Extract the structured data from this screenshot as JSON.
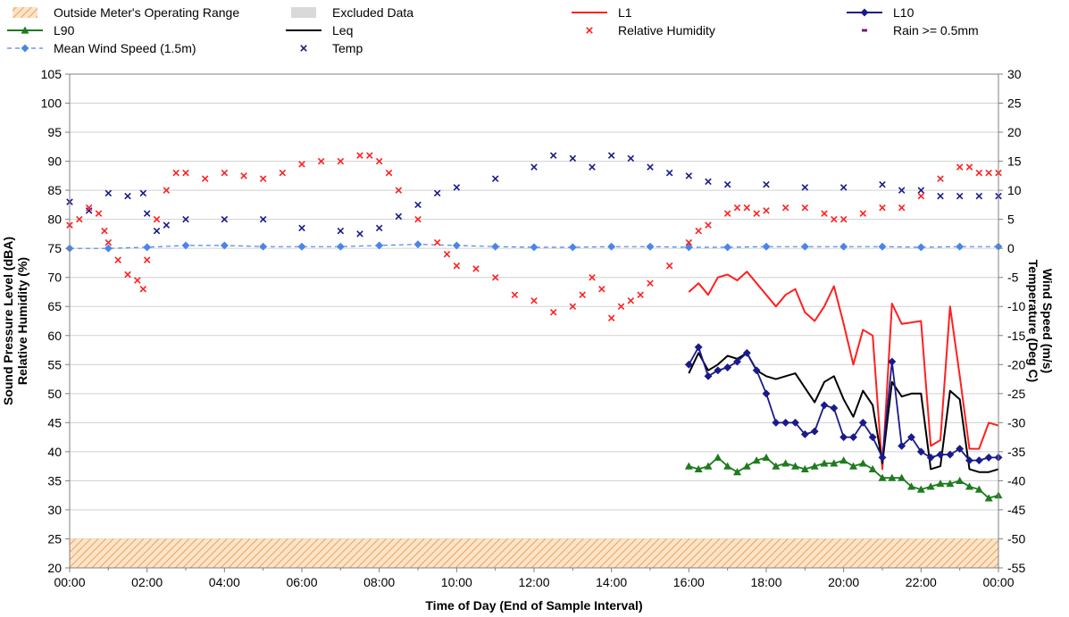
{
  "chart_data": {
    "type": "line",
    "xlabel": "Time of Day (End of Sample Interval)",
    "ylabel_left": [
      "Sound Pressure Level (dBA)",
      "Relative Humidity (%)"
    ],
    "ylabel_right": [
      "Wind Speed (m/s)",
      "Temperature (Deg C)"
    ],
    "x_ticks": [
      "00:00",
      "02:00",
      "04:00",
      "06:00",
      "08:00",
      "10:00",
      "12:00",
      "14:00",
      "16:00",
      "18:00",
      "20:00",
      "22:00",
      "00:00"
    ],
    "xlim_hours": [
      0,
      24
    ],
    "ylim_left": [
      20,
      105
    ],
    "yticks_left": [
      20,
      25,
      30,
      35,
      40,
      45,
      50,
      55,
      60,
      65,
      70,
      75,
      80,
      85,
      90,
      95,
      100,
      105
    ],
    "ylim_right": [
      -55,
      30
    ],
    "yticks_right": [
      -55,
      -50,
      -45,
      -40,
      -35,
      -30,
      -25,
      -20,
      -15,
      -10,
      -5,
      0,
      5,
      10,
      15,
      20,
      25,
      30
    ],
    "grid": "horizontal",
    "legend_placement": "top",
    "bands": [
      {
        "name": "Outside Meter's Operating Range",
        "y_from": 20,
        "y_to": 25,
        "axis": "left",
        "color": "#f2b36b"
      }
    ],
    "legend": [
      {
        "label": "Outside Meter's Operating Range",
        "kind": "hatch",
        "color": "#f2b36b"
      },
      {
        "label": "Excluded Data",
        "kind": "box",
        "color": "#d9d9d9"
      },
      {
        "label": "L1",
        "kind": "line",
        "color": "#ff2020"
      },
      {
        "label": "L10",
        "kind": "line-diamond",
        "color": "#1a1a8c"
      },
      {
        "label": "L90",
        "kind": "line-triangle",
        "color": "#1e7b1e"
      },
      {
        "label": "Leq",
        "kind": "line",
        "color": "#000000"
      },
      {
        "label": "Relative Humidity",
        "kind": "x",
        "color": "#ff2020"
      },
      {
        "label": "Rain >= 0.5mm",
        "kind": "dash",
        "color": "#7a1a7a"
      },
      {
        "label": "Mean Wind Speed (1.5m)",
        "kind": "dash-diamond",
        "color": "#4a86e8"
      },
      {
        "label": "Temp",
        "kind": "x",
        "color": "#1a1a8c"
      }
    ],
    "series": [
      {
        "name": "Relative Humidity",
        "axis": "left",
        "style": "x",
        "color": "#ff2020",
        "points": [
          [
            0,
            79
          ],
          [
            0.25,
            80
          ],
          [
            0.5,
            82
          ],
          [
            0.75,
            81
          ],
          [
            0.9,
            78
          ],
          [
            1.0,
            76
          ],
          [
            1.25,
            73
          ],
          [
            1.5,
            70.5
          ],
          [
            1.75,
            69.5
          ],
          [
            1.9,
            68
          ],
          [
            2.0,
            73
          ],
          [
            2.25,
            80
          ],
          [
            2.5,
            85
          ],
          [
            2.75,
            88
          ],
          [
            3.0,
            88
          ],
          [
            3.5,
            87
          ],
          [
            4.0,
            88
          ],
          [
            4.5,
            87.5
          ],
          [
            5.0,
            87
          ],
          [
            5.5,
            88
          ],
          [
            6.0,
            89.5
          ],
          [
            6.5,
            90
          ],
          [
            7.0,
            90
          ],
          [
            7.5,
            91
          ],
          [
            7.75,
            91
          ],
          [
            8.0,
            90
          ],
          [
            8.25,
            88
          ],
          [
            8.5,
            85
          ],
          [
            9.0,
            80
          ],
          [
            9.5,
            76
          ],
          [
            9.75,
            74
          ],
          [
            10.0,
            72
          ],
          [
            10.5,
            71.5
          ],
          [
            11.0,
            70
          ],
          [
            11.5,
            67
          ],
          [
            12.0,
            66
          ],
          [
            12.5,
            64
          ],
          [
            13.0,
            65
          ],
          [
            13.25,
            67
          ],
          [
            13.5,
            70
          ],
          [
            13.75,
            68
          ],
          [
            14.0,
            63
          ],
          [
            14.25,
            65
          ],
          [
            14.5,
            66
          ],
          [
            14.75,
            67
          ],
          [
            15.0,
            69
          ],
          [
            15.5,
            72
          ],
          [
            16.0,
            76
          ],
          [
            16.25,
            78
          ],
          [
            16.5,
            79
          ],
          [
            17.0,
            81
          ],
          [
            17.25,
            82
          ],
          [
            17.5,
            82
          ],
          [
            17.75,
            81
          ],
          [
            18.0,
            81.5
          ],
          [
            18.5,
            82
          ],
          [
            19.0,
            82
          ],
          [
            19.5,
            81
          ],
          [
            19.75,
            80
          ],
          [
            20.0,
            80
          ],
          [
            20.5,
            81
          ],
          [
            21.0,
            82
          ],
          [
            21.5,
            82
          ],
          [
            22.0,
            84
          ],
          [
            22.5,
            87
          ],
          [
            23.0,
            89
          ],
          [
            23.25,
            89
          ],
          [
            23.5,
            88
          ],
          [
            23.75,
            88
          ],
          [
            24.0,
            88
          ]
        ]
      },
      {
        "name": "Temp",
        "axis": "right",
        "style": "x",
        "color": "#1a1a8c",
        "points": [
          [
            0,
            8
          ],
          [
            0.5,
            6.5
          ],
          [
            1.0,
            9.5
          ],
          [
            1.5,
            9
          ],
          [
            1.9,
            9.5
          ],
          [
            2.0,
            6
          ],
          [
            2.25,
            3
          ],
          [
            2.5,
            4
          ],
          [
            3.0,
            5
          ],
          [
            4.0,
            5
          ],
          [
            5.0,
            5
          ],
          [
            6.0,
            3.5
          ],
          [
            7.0,
            3
          ],
          [
            7.5,
            2.5
          ],
          [
            8.0,
            3.5
          ],
          [
            8.5,
            5.5
          ],
          [
            9.0,
            7.5
          ],
          [
            9.5,
            9.5
          ],
          [
            10.0,
            10.5
          ],
          [
            11.0,
            12
          ],
          [
            12.0,
            14
          ],
          [
            12.5,
            16
          ],
          [
            13.0,
            15.5
          ],
          [
            13.5,
            14
          ],
          [
            14.0,
            16
          ],
          [
            14.5,
            15.5
          ],
          [
            15.0,
            14
          ],
          [
            15.5,
            13
          ],
          [
            16.0,
            12.5
          ],
          [
            16.5,
            11.5
          ],
          [
            17.0,
            11
          ],
          [
            18.0,
            11
          ],
          [
            19.0,
            10.5
          ],
          [
            20.0,
            10.5
          ],
          [
            21.0,
            11
          ],
          [
            21.5,
            10
          ],
          [
            22.0,
            10
          ],
          [
            22.5,
            9
          ],
          [
            23.0,
            9
          ],
          [
            23.5,
            9
          ],
          [
            24.0,
            9
          ]
        ]
      },
      {
        "name": "Mean Wind Speed (1.5m)",
        "axis": "right",
        "style": "dash-diamond",
        "color": "#4a86e8",
        "points": [
          [
            0,
            0
          ],
          [
            1,
            0
          ],
          [
            2,
            0.2
          ],
          [
            3,
            0.5
          ],
          [
            4,
            0.5
          ],
          [
            5,
            0.3
          ],
          [
            6,
            0.3
          ],
          [
            7,
            0.3
          ],
          [
            8,
            0.5
          ],
          [
            9,
            0.7
          ],
          [
            10,
            0.5
          ],
          [
            11,
            0.3
          ],
          [
            12,
            0.2
          ],
          [
            13,
            0.2
          ],
          [
            14,
            0.3
          ],
          [
            15,
            0.3
          ],
          [
            16,
            0.2
          ],
          [
            17,
            0.2
          ],
          [
            18,
            0.3
          ],
          [
            19,
            0.3
          ],
          [
            20,
            0.3
          ],
          [
            21,
            0.3
          ],
          [
            22,
            0.2
          ],
          [
            23,
            0.3
          ],
          [
            24,
            0.3
          ]
        ]
      },
      {
        "name": "L1",
        "axis": "left",
        "style": "line",
        "color": "#ff2020",
        "points": [
          [
            16.0,
            67.5
          ],
          [
            16.25,
            69
          ],
          [
            16.5,
            67
          ],
          [
            16.75,
            70
          ],
          [
            17.0,
            70.5
          ],
          [
            17.25,
            69.5
          ],
          [
            17.5,
            71
          ],
          [
            17.75,
            69
          ],
          [
            18.0,
            67
          ],
          [
            18.25,
            65
          ],
          [
            18.5,
            67
          ],
          [
            18.75,
            68
          ],
          [
            19.0,
            64
          ],
          [
            19.25,
            62.5
          ],
          [
            19.5,
            65
          ],
          [
            19.75,
            68.5
          ],
          [
            20.0,
            62
          ],
          [
            20.25,
            55
          ],
          [
            20.5,
            61
          ],
          [
            20.75,
            60
          ],
          [
            21.0,
            37
          ],
          [
            21.25,
            65.5
          ],
          [
            21.5,
            62
          ],
          [
            22.0,
            62.5
          ],
          [
            22.25,
            41
          ],
          [
            22.5,
            42
          ],
          [
            22.75,
            65
          ],
          [
            23.0,
            53
          ],
          [
            23.25,
            40.5
          ],
          [
            23.5,
            40.5
          ],
          [
            23.75,
            45
          ],
          [
            24.0,
            44.5
          ]
        ]
      },
      {
        "name": "Leq",
        "axis": "left",
        "style": "line",
        "color": "#000000",
        "points": [
          [
            16.0,
            53.5
          ],
          [
            16.25,
            57
          ],
          [
            16.5,
            54
          ],
          [
            16.75,
            55
          ],
          [
            17.0,
            56.5
          ],
          [
            17.25,
            56
          ],
          [
            17.5,
            57
          ],
          [
            17.75,
            54
          ],
          [
            18.0,
            53
          ],
          [
            18.25,
            52.5
          ],
          [
            18.5,
            53
          ],
          [
            18.75,
            53.5
          ],
          [
            19.0,
            51
          ],
          [
            19.25,
            48.5
          ],
          [
            19.5,
            52
          ],
          [
            19.75,
            53
          ],
          [
            20.0,
            49
          ],
          [
            20.25,
            46
          ],
          [
            20.5,
            50.5
          ],
          [
            20.75,
            48
          ],
          [
            21.0,
            38
          ],
          [
            21.25,
            52
          ],
          [
            21.5,
            49.5
          ],
          [
            21.75,
            50
          ],
          [
            22.0,
            50
          ],
          [
            22.25,
            37
          ],
          [
            22.5,
            37.5
          ],
          [
            22.75,
            50.5
          ],
          [
            23.0,
            49
          ],
          [
            23.25,
            37
          ],
          [
            23.5,
            36.5
          ],
          [
            23.75,
            36.5
          ],
          [
            24.0,
            37
          ]
        ]
      },
      {
        "name": "L10",
        "axis": "left",
        "style": "line-diamond",
        "color": "#1a1a8c",
        "points": [
          [
            16.0,
            55
          ],
          [
            16.25,
            58
          ],
          [
            16.5,
            53
          ],
          [
            16.75,
            54
          ],
          [
            17.0,
            54.5
          ],
          [
            17.25,
            55.5
          ],
          [
            17.5,
            57
          ],
          [
            17.75,
            54
          ],
          [
            18.0,
            50
          ],
          [
            18.25,
            45
          ],
          [
            18.5,
            45
          ],
          [
            18.75,
            45
          ],
          [
            19.0,
            43
          ],
          [
            19.25,
            43.5
          ],
          [
            19.5,
            48
          ],
          [
            19.75,
            47.5
          ],
          [
            20.0,
            42.5
          ],
          [
            20.25,
            42.5
          ],
          [
            20.5,
            45
          ],
          [
            20.75,
            42.5
          ],
          [
            21.0,
            39
          ],
          [
            21.25,
            55.5
          ],
          [
            21.5,
            41
          ],
          [
            21.75,
            42.5
          ],
          [
            22.0,
            40
          ],
          [
            22.25,
            39
          ],
          [
            22.5,
            39.5
          ],
          [
            22.75,
            39.5
          ],
          [
            23.0,
            40.5
          ],
          [
            23.25,
            38.5
          ],
          [
            23.5,
            38.5
          ],
          [
            23.75,
            39
          ],
          [
            24.0,
            39
          ]
        ]
      },
      {
        "name": "L90",
        "axis": "left",
        "style": "line-triangle",
        "color": "#1e7b1e",
        "points": [
          [
            16.0,
            37.5
          ],
          [
            16.25,
            37
          ],
          [
            16.5,
            37.5
          ],
          [
            16.75,
            39
          ],
          [
            17.0,
            37.5
          ],
          [
            17.25,
            36.5
          ],
          [
            17.5,
            37.5
          ],
          [
            17.75,
            38.5
          ],
          [
            18.0,
            39
          ],
          [
            18.25,
            37.5
          ],
          [
            18.5,
            38
          ],
          [
            18.75,
            37.5
          ],
          [
            19.0,
            37
          ],
          [
            19.25,
            37.5
          ],
          [
            19.5,
            38
          ],
          [
            19.75,
            38
          ],
          [
            20.0,
            38.5
          ],
          [
            20.25,
            37.5
          ],
          [
            20.5,
            38
          ],
          [
            20.75,
            37
          ],
          [
            21.0,
            35.5
          ],
          [
            21.25,
            35.5
          ],
          [
            21.5,
            35.5
          ],
          [
            21.75,
            34
          ],
          [
            22.0,
            33.5
          ],
          [
            22.25,
            34
          ],
          [
            22.5,
            34.5
          ],
          [
            22.75,
            34.5
          ],
          [
            23.0,
            35
          ],
          [
            23.25,
            34
          ],
          [
            23.5,
            33.5
          ],
          [
            23.75,
            32
          ],
          [
            24.0,
            32.5
          ]
        ]
      }
    ]
  }
}
